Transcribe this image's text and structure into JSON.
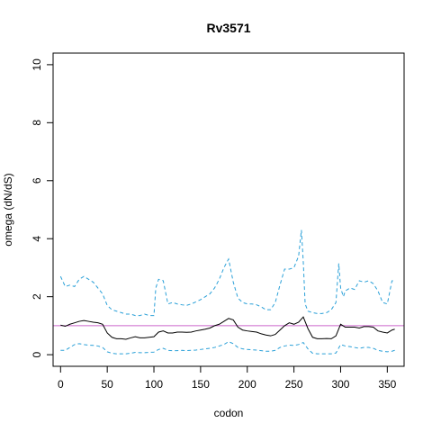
{
  "chart_data": {
    "type": "line",
    "title": "Rv3571",
    "xlabel": "codon",
    "ylabel": "omega (dN/dS)",
    "xlim": [
      -8,
      368
    ],
    "ylim": [
      -0.4,
      10.4
    ],
    "x_ticks": [
      0,
      50,
      100,
      150,
      200,
      250,
      300,
      350
    ],
    "y_ticks": [
      0,
      2,
      4,
      6,
      8,
      10
    ],
    "grid": false,
    "reference_line": {
      "y": 1,
      "color": "#cc66cc"
    },
    "colors": {
      "estimate": "#000000",
      "bounds": "#2aa0d8"
    },
    "series": [
      {
        "style": "solid",
        "x": [
          0,
          5,
          10,
          15,
          20,
          25,
          30,
          35,
          40,
          45,
          50,
          55,
          60,
          65,
          70,
          75,
          80,
          85,
          90,
          95,
          100,
          105,
          110,
          115,
          120,
          125,
          130,
          135,
          140,
          145,
          150,
          155,
          160,
          165,
          170,
          175,
          180,
          185,
          190,
          195,
          200,
          205,
          210,
          215,
          220,
          225,
          230,
          235,
          240,
          245,
          250,
          255,
          260,
          265,
          270,
          275,
          280,
          285,
          290,
          295,
          300,
          305,
          310,
          315,
          320,
          325,
          330,
          335,
          340,
          345,
          350,
          355,
          358
        ],
        "values": [
          1.02,
          0.98,
          1.05,
          1.1,
          1.15,
          1.18,
          1.15,
          1.12,
          1.1,
          1.05,
          0.75,
          0.6,
          0.55,
          0.55,
          0.53,
          0.58,
          0.62,
          0.58,
          0.58,
          0.6,
          0.62,
          0.78,
          0.82,
          0.75,
          0.75,
          0.78,
          0.78,
          0.77,
          0.78,
          0.82,
          0.85,
          0.88,
          0.92,
          1.0,
          1.05,
          1.15,
          1.25,
          1.2,
          0.95,
          0.85,
          0.82,
          0.8,
          0.78,
          0.72,
          0.68,
          0.65,
          0.7,
          0.85,
          1.0,
          1.1,
          1.05,
          1.12,
          1.3,
          0.9,
          0.6,
          0.55,
          0.55,
          0.56,
          0.55,
          0.65,
          1.05,
          0.95,
          0.95,
          0.95,
          0.92,
          0.97,
          0.97,
          0.95,
          0.82,
          0.78,
          0.75,
          0.85,
          0.88
        ]
      },
      {
        "style": "dashed",
        "x": [
          0,
          5,
          10,
          15,
          20,
          25,
          30,
          35,
          40,
          45,
          50,
          55,
          60,
          65,
          70,
          75,
          80,
          85,
          90,
          95,
          100,
          102,
          105,
          110,
          115,
          120,
          125,
          130,
          135,
          140,
          145,
          150,
          155,
          160,
          165,
          170,
          175,
          180,
          185,
          190,
          195,
          200,
          205,
          210,
          215,
          220,
          225,
          230,
          235,
          240,
          245,
          250,
          255,
          258,
          260,
          262,
          265,
          270,
          275,
          280,
          285,
          290,
          295,
          298,
          300,
          303,
          305,
          310,
          315,
          320,
          325,
          330,
          335,
          340,
          345,
          350,
          355,
          358
        ],
        "values": [
          2.7,
          2.35,
          2.4,
          2.35,
          2.6,
          2.7,
          2.6,
          2.5,
          2.3,
          2.1,
          1.7,
          1.55,
          1.5,
          1.45,
          1.4,
          1.4,
          1.35,
          1.35,
          1.4,
          1.35,
          1.35,
          2.3,
          2.6,
          2.55,
          1.75,
          1.8,
          1.75,
          1.72,
          1.7,
          1.75,
          1.82,
          1.9,
          2.0,
          2.1,
          2.3,
          2.6,
          3.0,
          3.3,
          2.5,
          1.95,
          1.8,
          1.75,
          1.75,
          1.72,
          1.65,
          1.55,
          1.55,
          1.8,
          2.4,
          2.95,
          2.95,
          3.0,
          3.4,
          4.3,
          3.2,
          1.75,
          1.5,
          1.45,
          1.42,
          1.42,
          1.45,
          1.55,
          1.8,
          3.15,
          2.3,
          2.0,
          2.2,
          2.3,
          2.25,
          2.55,
          2.5,
          2.55,
          2.45,
          2.2,
          1.8,
          1.75,
          2.55,
          2.55
        ]
      },
      {
        "style": "dashed",
        "x": [
          0,
          5,
          10,
          15,
          20,
          25,
          30,
          35,
          40,
          45,
          50,
          55,
          60,
          65,
          70,
          75,
          80,
          85,
          90,
          95,
          100,
          105,
          110,
          115,
          120,
          125,
          130,
          135,
          140,
          145,
          150,
          155,
          160,
          165,
          170,
          175,
          180,
          185,
          190,
          195,
          200,
          205,
          210,
          215,
          220,
          225,
          230,
          235,
          240,
          245,
          250,
          255,
          260,
          265,
          270,
          275,
          280,
          285,
          290,
          295,
          300,
          305,
          310,
          315,
          320,
          325,
          330,
          335,
          340,
          345,
          350,
          355,
          358
        ],
        "values": [
          0.15,
          0.15,
          0.25,
          0.35,
          0.38,
          0.35,
          0.33,
          0.32,
          0.3,
          0.25,
          0.1,
          0.05,
          0.03,
          0.03,
          0.03,
          0.05,
          0.08,
          0.07,
          0.07,
          0.08,
          0.09,
          0.18,
          0.22,
          0.15,
          0.14,
          0.14,
          0.15,
          0.14,
          0.15,
          0.16,
          0.18,
          0.2,
          0.22,
          0.25,
          0.3,
          0.35,
          0.45,
          0.38,
          0.25,
          0.2,
          0.18,
          0.17,
          0.16,
          0.14,
          0.12,
          0.12,
          0.15,
          0.25,
          0.3,
          0.33,
          0.32,
          0.35,
          0.42,
          0.2,
          0.05,
          0.03,
          0.03,
          0.03,
          0.03,
          0.06,
          0.35,
          0.3,
          0.28,
          0.25,
          0.22,
          0.25,
          0.25,
          0.22,
          0.15,
          0.12,
          0.1,
          0.12,
          0.15
        ]
      }
    ]
  }
}
